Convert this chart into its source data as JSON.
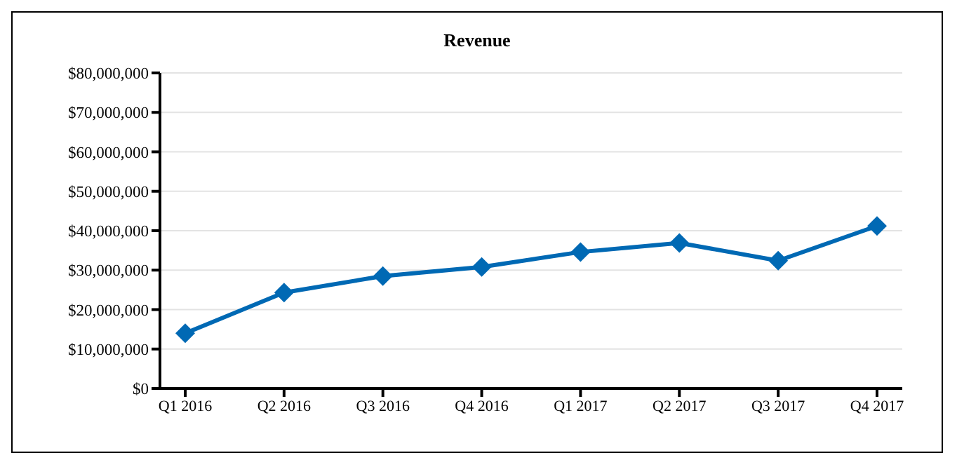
{
  "chart_data": {
    "type": "line",
    "title": "Revenue",
    "categories": [
      "Q1 2016",
      "Q2 2016",
      "Q3 2016",
      "Q4 2016",
      "Q1 2017",
      "Q2 2017",
      "Q3 2017",
      "Q4 2017"
    ],
    "series": [
      {
        "color": "#0069b4",
        "values": [
          14000000,
          24300000,
          28500000,
          30800000,
          34600000,
          36900000,
          32400000,
          41200000
        ]
      }
    ],
    "ylim": [
      0,
      80000000
    ],
    "yticks": [
      {
        "value": 0,
        "label": "$0"
      },
      {
        "value": 10000000,
        "label": "$10,000,000"
      },
      {
        "value": 20000000,
        "label": "$20,000,000"
      },
      {
        "value": 30000000,
        "label": "$30,000,000"
      },
      {
        "value": 40000000,
        "label": "$40,000,000"
      },
      {
        "value": 50000000,
        "label": "$50,000,000"
      },
      {
        "value": 60000000,
        "label": "$60,000,000"
      },
      {
        "value": 70000000,
        "label": "$70,000,000"
      },
      {
        "value": 80000000,
        "label": "$80,000,000"
      }
    ],
    "grid": "y",
    "marker": "diamond"
  }
}
